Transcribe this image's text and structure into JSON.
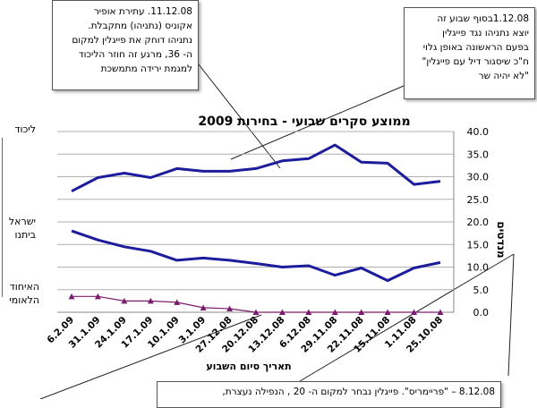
{
  "chart_data": {
    "type": "line",
    "title": "ממוצע סקרים שבועי - בחירות 2009",
    "xlabel": "תאריך סיום השבוע",
    "ylabel": "מנדטים",
    "ylim": [
      0,
      40
    ],
    "y_ticks": [
      "0.0",
      "5.0",
      "10.0",
      "15.0",
      "20.0",
      "25.0",
      "30.0",
      "35.0",
      "40.0"
    ],
    "x_order": "right-to-left (oldest date on the right)",
    "grid": true,
    "categories": [
      "6.2.09",
      "31.1.09",
      "24.1.09",
      "17.1.09",
      "10.1.09",
      "3.1.09",
      "27.12.08",
      "20.12.08",
      "13.12.08",
      "6.12.08",
      "29.11.08",
      "22.11.08",
      "15.11.08",
      "1.11.08",
      "25.10.08"
    ],
    "series": [
      {
        "name": "ליכוד",
        "color": "#1c1c9c",
        "values": [
          26.8,
          29.8,
          30.8,
          29.8,
          31.8,
          31.2,
          31.2,
          31.8,
          33.5,
          34.0,
          37.0,
          33.2,
          33.0,
          28.3,
          29.0
        ]
      },
      {
        "name": "ישראל ביתנו",
        "color": "#1c1c9c",
        "values": [
          18.0,
          16.0,
          14.5,
          13.5,
          11.5,
          12.0,
          11.5,
          10.8,
          10.0,
          10.3,
          8.2,
          9.8,
          7.0,
          9.8,
          11.0
        ]
      },
      {
        "name": "האיחוד הלאומי",
        "color": "#7a1d6e",
        "values": [
          3.5,
          3.5,
          2.5,
          2.5,
          2.2,
          1.0,
          0.8,
          0.0,
          0.0,
          0.0,
          0.0,
          0.0,
          0.0,
          0.0,
          0.0
        ]
      }
    ]
  },
  "notes": {
    "left": [
      "11.12.08. עתירת אופיר",
      "אקוניס (נתניהו) מתקבלת.",
      "נתניהו דוחק את פייגלין למקום",
      "ה- 36, מרגע זה חוזר הליכוד",
      "למגמת ירידה מתמשכת"
    ],
    "right": [
      "1.12.08בסוף שבוע זה",
      "יוצא נתניהו נגד פייגלין",
      "בפעם הראשונה באופן גלוי",
      "ח\"כ שיסגור דיל עם פייגלין\"",
      "\"לא יהיה שר"
    ],
    "bottom": [
      "8.12.08 – \"פריימריס\". פייגלין נבחר למקום ה- 20 , הנפילה נעצרת,"
    ]
  }
}
